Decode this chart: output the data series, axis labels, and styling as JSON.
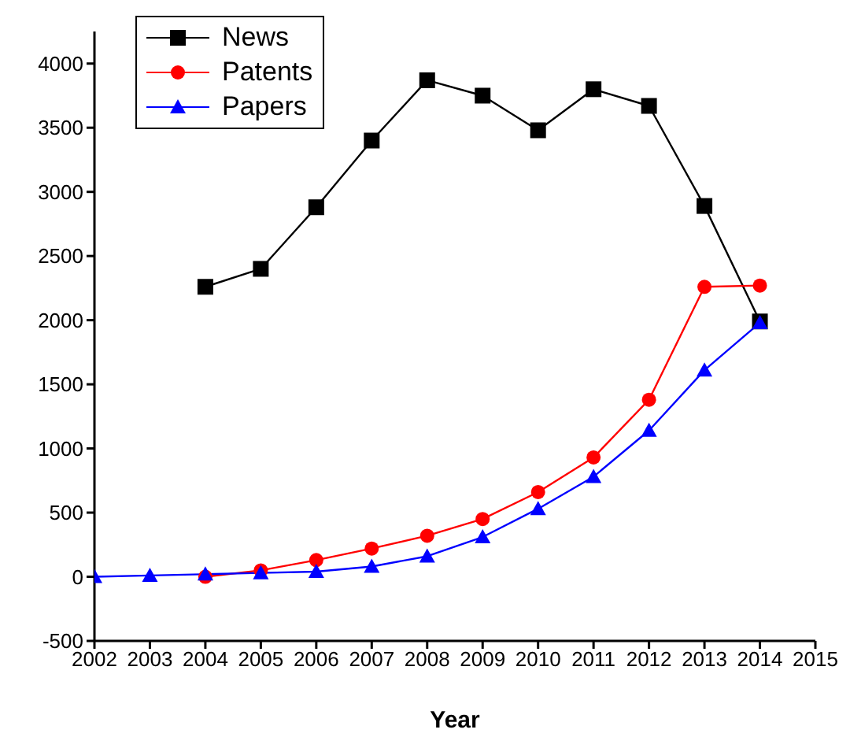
{
  "chart_data": {
    "type": "line",
    "xlabel": "Year",
    "xlim": [
      2002,
      2015
    ],
    "xticks": [
      2002,
      2003,
      2004,
      2005,
      2006,
      2007,
      2008,
      2009,
      2010,
      2011,
      2012,
      2013,
      2014,
      2015
    ],
    "ylim": [
      -500,
      4250
    ],
    "yticks": [
      -500,
      0,
      500,
      1000,
      1500,
      2000,
      2500,
      3000,
      3500,
      4000
    ],
    "grid": false,
    "legend": "top left",
    "series": [
      {
        "name": "News",
        "color": "#000000",
        "marker": "square",
        "x": [
          2004,
          2005,
          2006,
          2007,
          2008,
          2009,
          2010,
          2011,
          2012,
          2013,
          2014
        ],
        "values": [
          2260,
          2400,
          2880,
          3400,
          3870,
          3750,
          3480,
          3800,
          3670,
          2890,
          1990
        ]
      },
      {
        "name": "Patents",
        "color": "#ff0000",
        "marker": "circle",
        "x": [
          2004,
          2005,
          2006,
          2007,
          2008,
          2009,
          2010,
          2011,
          2012,
          2013,
          2014
        ],
        "values": [
          0,
          50,
          130,
          220,
          320,
          450,
          660,
          930,
          1380,
          2260,
          2270
        ]
      },
      {
        "name": "Papers",
        "color": "#0000ff",
        "marker": "triangle",
        "x": [
          2002,
          2003,
          2004,
          2005,
          2006,
          2007,
          2008,
          2009,
          2010,
          2011,
          2012,
          2013,
          2014
        ],
        "values": [
          0,
          10,
          20,
          30,
          40,
          80,
          160,
          310,
          530,
          780,
          1140,
          1610,
          1980
        ]
      }
    ]
  }
}
